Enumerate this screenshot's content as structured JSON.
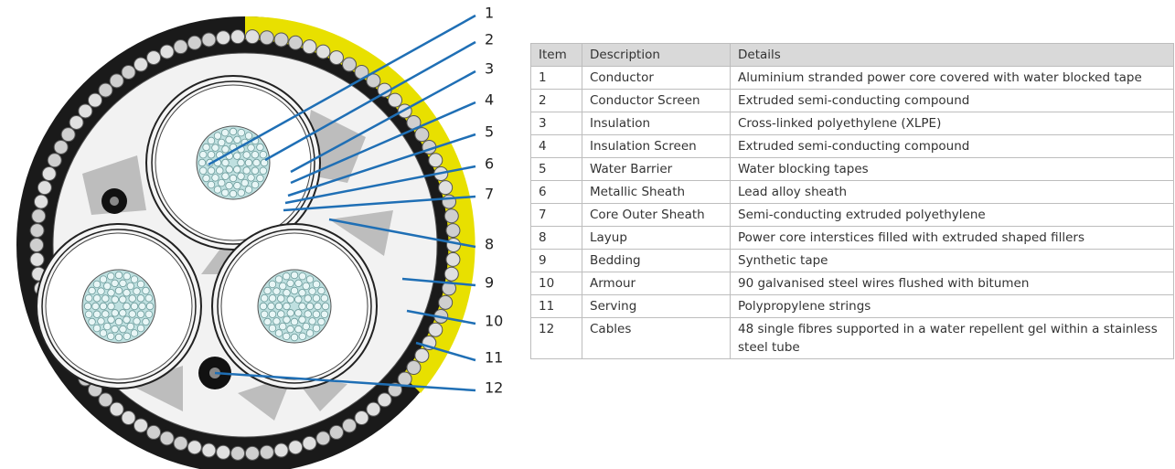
{
  "callouts": [
    "1",
    "2",
    "3",
    "4",
    "5",
    "6",
    "7",
    "8",
    "9",
    "10",
    "11",
    "12"
  ],
  "table": {
    "header": [
      "Item",
      "Description",
      "Details"
    ],
    "rows": [
      [
        "1",
        "Conductor",
        "Aluminium stranded power core covered with water blocked tape"
      ],
      [
        "2",
        "Conductor Screen",
        "Extruded semi-conducting compound"
      ],
      [
        "3",
        "Insulation",
        "Cross-linked polyethylene (XLPE)"
      ],
      [
        "4",
        "Insulation Screen",
        "Extruded semi-conducting compound"
      ],
      [
        "5",
        "Water Barrier",
        "Water blocking tapes"
      ],
      [
        "6",
        "Metallic Sheath",
        "Lead alloy sheath"
      ],
      [
        "7",
        "Core Outer Sheath",
        "Semi-conducting extruded polyethylene"
      ],
      [
        "8",
        "Layup",
        "Power core interstices filled with extruded shaped fillers"
      ],
      [
        "9",
        "Bedding",
        "Synthetic tape"
      ],
      [
        "10",
        "Armour",
        "90 galvanised steel wires flushed with bitumen"
      ],
      [
        "11",
        "Serving",
        "Polypropylene strings"
      ],
      [
        "12",
        "Cables",
        "48 single fibres supported in a water repellent gel within a stainless steel tube"
      ]
    ]
  }
}
